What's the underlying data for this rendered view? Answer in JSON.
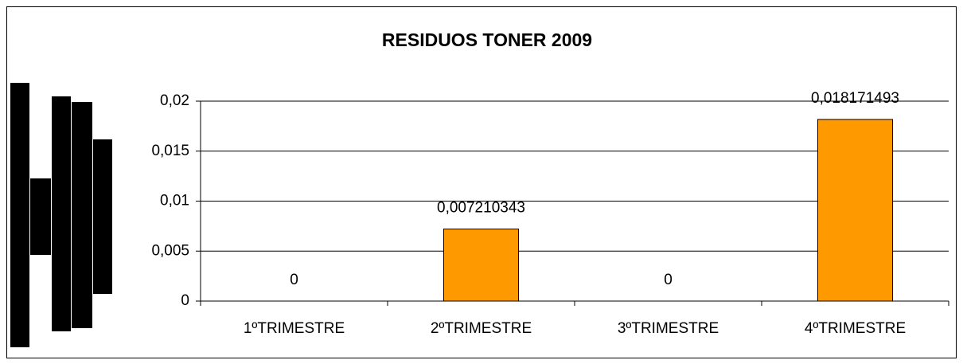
{
  "chart_data": {
    "type": "bar",
    "title": "RESIDUOS TONER 2009",
    "categories": [
      "1ºTRIMESTRE",
      "2ºTRIMESTRE",
      "3ºTRIMESTRE",
      "4ºTRIMESTRE"
    ],
    "values": [
      0,
      0.007210343,
      0,
      0.018171493
    ],
    "value_labels": [
      "0",
      "0,007210343",
      "0",
      "0,018171493"
    ],
    "color": "#ff9900",
    "ylim": [
      0,
      0.02
    ],
    "yticks": [
      0,
      {
        "value": 0.005,
        "label": "0,005"
      },
      {
        "value": 0.01,
        "label": "0,01"
      },
      {
        "value": 0.015,
        "label": "0,015"
      },
      {
        "value": 0.02,
        "label": "0,02"
      }
    ],
    "grid": true
  }
}
